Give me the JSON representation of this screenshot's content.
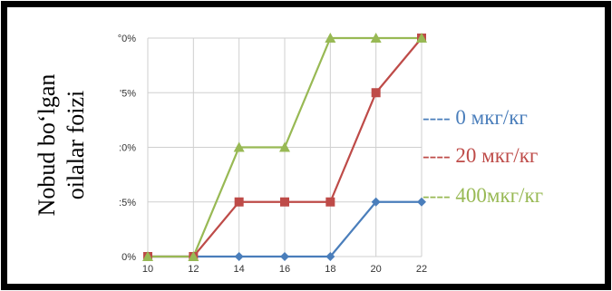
{
  "chart_data": {
    "type": "line",
    "ylabel": "Nobud bo‘lgan oilalar foizi",
    "x": [
      10,
      12,
      14,
      16,
      18,
      20,
      22
    ],
    "x_ticks": [
      "10",
      "12",
      "14",
      "16",
      "18",
      "20",
      "22"
    ],
    "y_ticks": [
      "0%",
      ":5%",
      ":0%",
      "'5%",
      "°0%"
    ],
    "ylim": [
      0,
      100
    ],
    "grid": true,
    "legend_position": "right",
    "series": [
      {
        "name": "---- 0 мкг/кг",
        "color": "#4a7ebb",
        "marker": "diamond",
        "values": [
          0,
          0,
          0,
          0,
          0,
          25,
          25
        ]
      },
      {
        "name": "---- 20 мкг/кг",
        "color": "#be4b48",
        "marker": "square",
        "values": [
          0,
          0,
          25,
          25,
          25,
          75,
          100
        ]
      },
      {
        "name": "---- 400мкг/кг",
        "color": "#98b954",
        "marker": "triangle",
        "values": [
          0,
          0,
          50,
          50,
          100,
          100,
          100
        ]
      }
    ]
  }
}
